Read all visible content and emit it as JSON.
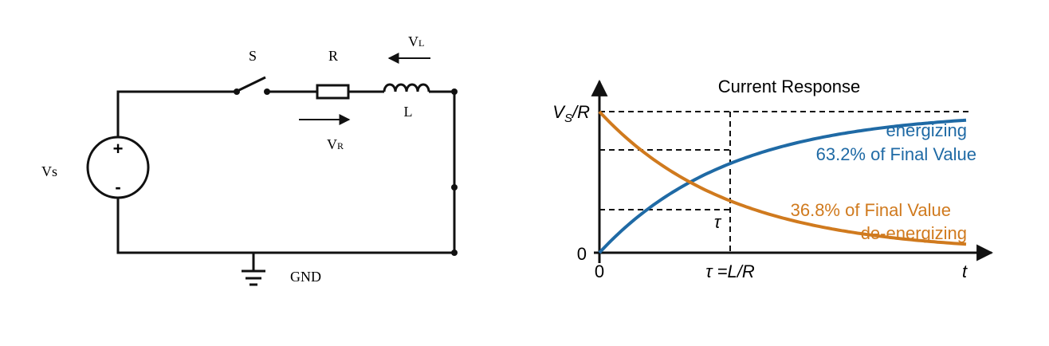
{
  "circuit": {
    "switch_label": "S",
    "resistor_label": "R",
    "inductor_voltage": {
      "main": "V",
      "sub": "L"
    },
    "resistor_voltage": {
      "main": "V",
      "sub": "R"
    },
    "inductor_label": "L",
    "source_label": "Vs",
    "source_plus": "+",
    "source_minus": "-",
    "ground_label": "GND"
  },
  "plot": {
    "title": "Current Response",
    "y_top_label": {
      "main": "V",
      "sub": "S",
      "rest": "/R"
    },
    "y_zero": "0",
    "x_zero": "0",
    "x_tau": "τ =L/R",
    "x_axis": "t",
    "tau_mark": "τ",
    "energizing": "energizing",
    "energizing_note": "63.2% of Final Value",
    "deenergizing_note": "36.8% of Final Value",
    "deenergizing": "de-energizing"
  }
}
